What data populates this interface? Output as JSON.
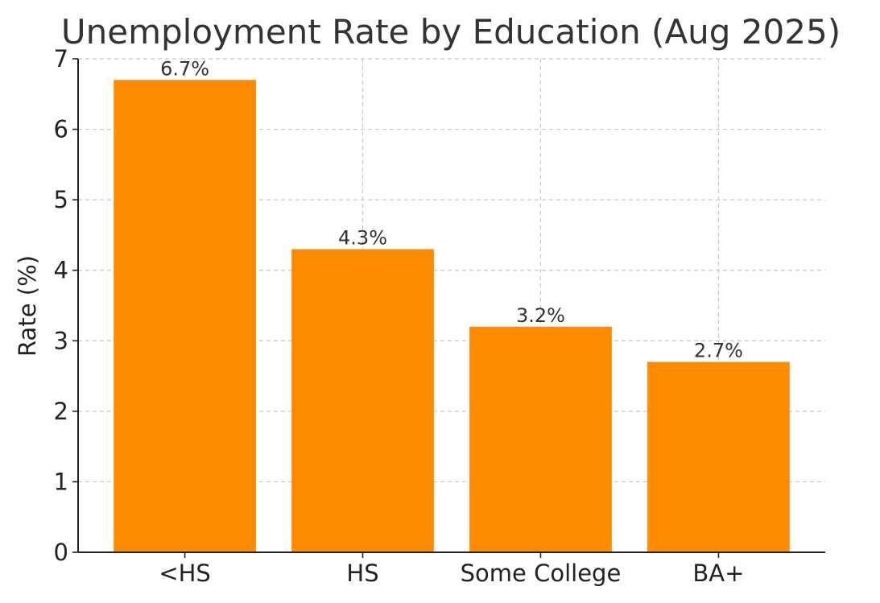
{
  "chart_data": {
    "type": "bar",
    "title": "Unemployment Rate by Education (Aug 2025)",
    "xlabel": "",
    "ylabel": "Rate (%)",
    "categories": [
      "<HS",
      "HS",
      "Some College",
      "BA+"
    ],
    "values": [
      6.7,
      4.3,
      3.2,
      2.7
    ],
    "data_labels": [
      "6.7%",
      "4.3%",
      "3.2%",
      "2.7%"
    ],
    "ylim": [
      0,
      7
    ],
    "yticks": [
      0,
      1,
      2,
      3,
      4,
      5,
      6,
      7
    ],
    "ytick_labels": [
      "0",
      "1",
      "2",
      "3",
      "4",
      "5",
      "6",
      "7"
    ],
    "grid": true,
    "bar_color": "#FF8C00"
  }
}
